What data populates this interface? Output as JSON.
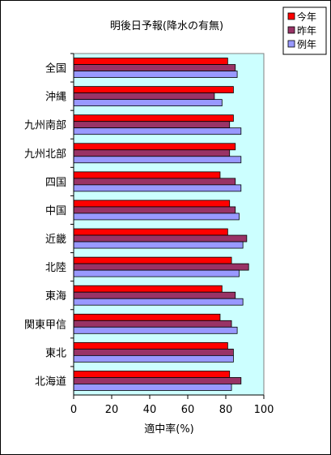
{
  "chart_data": {
    "type": "bar",
    "orientation": "horizontal",
    "title": "明後日予報(降水の有無)",
    "xlabel": "適中率(%)",
    "ylabel": "",
    "xlim": [
      0,
      100
    ],
    "x_ticks": [
      "0",
      "20",
      "40",
      "60",
      "80",
      "100"
    ],
    "grid": false,
    "legend_position": "top-right",
    "categories": [
      "全国",
      "沖縄",
      "九州南部",
      "九州北部",
      "四国",
      "中国",
      "近畿",
      "北陸",
      "東海",
      "関東甲信",
      "東北",
      "北海道"
    ],
    "series": [
      {
        "name": "今年",
        "color": "#ff0000",
        "values": [
          81,
          84,
          84,
          85,
          77,
          82,
          81,
          83,
          78,
          77,
          81,
          82
        ]
      },
      {
        "name": "昨年",
        "color": "#993366",
        "values": [
          85,
          74,
          82,
          82,
          85,
          85,
          91,
          92,
          85,
          83,
          84,
          88
        ]
      },
      {
        "name": "例年",
        "color": "#9999ff",
        "values": [
          86,
          78,
          88,
          88,
          88,
          87,
          89,
          87,
          89,
          86,
          84,
          83
        ]
      }
    ],
    "plot_background": "#ccffff",
    "bar_border_color": "#000000"
  }
}
